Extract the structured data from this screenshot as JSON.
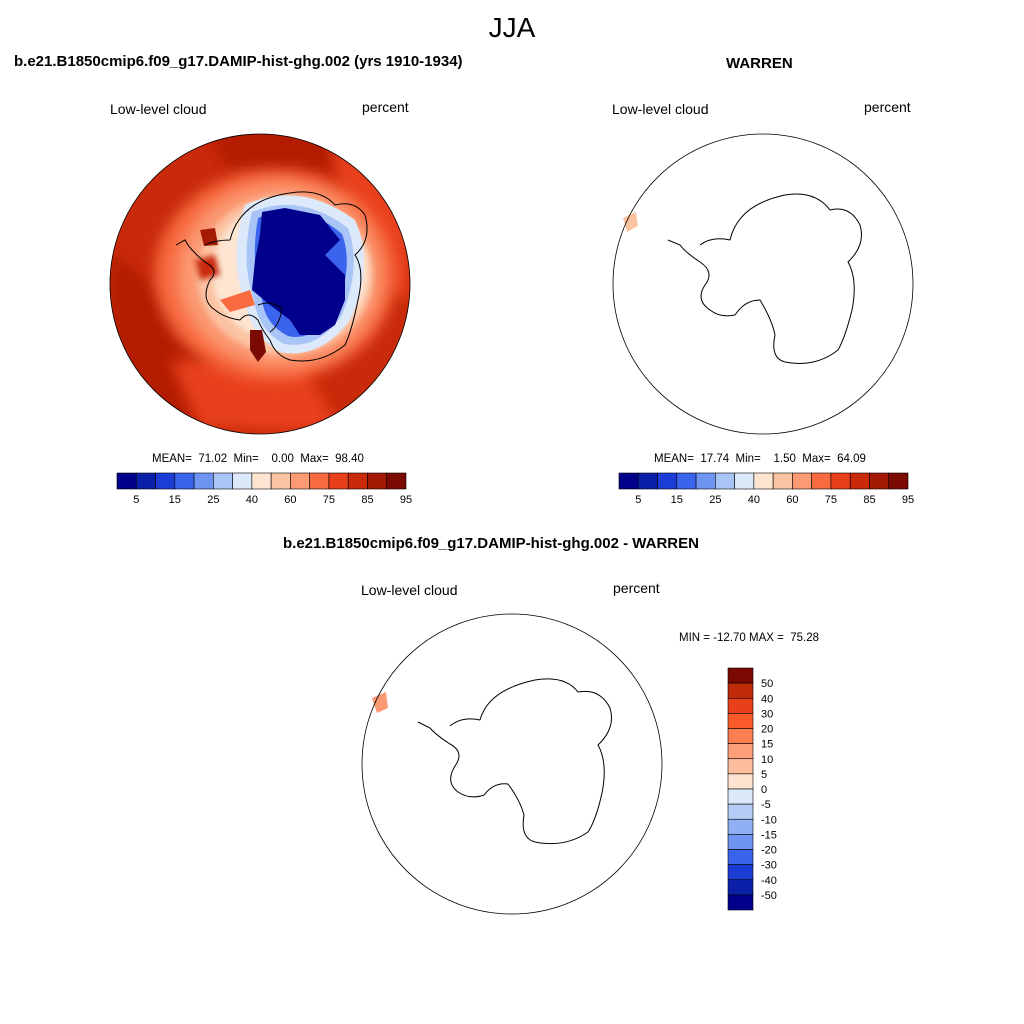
{
  "figure": {
    "season_title": "JJA",
    "panel_left": {
      "title": "b.e21.B1850cmip6.f09_g17.DAMIP-hist-ghg.002 (yrs 1910-1934)",
      "left_label": "Low-level cloud",
      "right_label": "percent",
      "stats": "MEAN=  71.02  Min=    0.00  Max=  98.40"
    },
    "panel_right": {
      "title": "WARREN",
      "left_label": "Low-level cloud",
      "right_label": "percent",
      "stats": "MEAN=  17.74  Min=    1.50  Max=  64.09"
    },
    "panel_diff": {
      "title": "b.e21.B1850cmip6.f09_g17.DAMIP-hist-ghg.002 - WARREN",
      "left_label": "Low-level cloud",
      "right_label": "percent",
      "stats": "MIN = -12.70 MAX =  75.28"
    }
  },
  "chart_data": [
    {
      "type": "heatmap",
      "projection": "south polar stereographic",
      "title": "b.e21.B1850cmip6.f09_g17.DAMIP-hist-ghg.002 (yrs 1910-1934)",
      "variable": "Low-level cloud",
      "units": "percent",
      "stats": {
        "mean": 71.02,
        "min": 0.0,
        "max": 98.4
      },
      "colorbar": {
        "orientation": "horizontal",
        "labels": [
          "5",
          "15",
          "25",
          "40",
          "60",
          "75",
          "85",
          "95"
        ],
        "colors": [
          "#00008B",
          "#0A20A8",
          "#1C3CD6",
          "#3A64EE",
          "#6E95F2",
          "#A9C4F7",
          "#DCE9FA",
          "#FDE5D2",
          "#FCC3A3",
          "#FB9A73",
          "#F86B40",
          "#E8401A",
          "#C92A0A",
          "#A51A04",
          "#7A0A02"
        ]
      }
    },
    {
      "type": "heatmap",
      "projection": "south polar stereographic",
      "title": "WARREN",
      "variable": "Low-level cloud",
      "units": "percent",
      "stats": {
        "mean": 17.74,
        "min": 1.5,
        "max": 64.09
      },
      "colorbar": {
        "orientation": "horizontal",
        "labels": [
          "5",
          "15",
          "25",
          "40",
          "60",
          "75",
          "85",
          "95"
        ],
        "colors": [
          "#00008B",
          "#0A20A8",
          "#1C3CD6",
          "#3A64EE",
          "#6E95F2",
          "#A9C4F7",
          "#DCE9FA",
          "#FDE5D2",
          "#FCC3A3",
          "#FB9A73",
          "#F86B40",
          "#E8401A",
          "#C92A0A",
          "#A51A04",
          "#7A0A02"
        ]
      }
    },
    {
      "type": "heatmap",
      "projection": "south polar stereographic",
      "title": "b.e21.B1850cmip6.f09_g17.DAMIP-hist-ghg.002 - WARREN",
      "variable": "Low-level cloud",
      "units": "percent",
      "stats": {
        "min": -12.7,
        "max": 75.28
      },
      "colorbar": {
        "orientation": "vertical",
        "labels": [
          "50",
          "40",
          "30",
          "20",
          "15",
          "10",
          "5",
          "0",
          "-5",
          "-10",
          "-15",
          "-20",
          "-30",
          "-40",
          "-50"
        ],
        "colors": [
          "#7A0A02",
          "#C02C0A",
          "#E8401A",
          "#FA5A2A",
          "#FB7E50",
          "#FC9E78",
          "#FDBE9E",
          "#FEE3D0",
          "#DCE9FA",
          "#B5CDF6",
          "#8FB0F2",
          "#6E95F2",
          "#3A64EE",
          "#1C3CD6",
          "#0A20A8",
          "#00008B"
        ]
      }
    }
  ]
}
